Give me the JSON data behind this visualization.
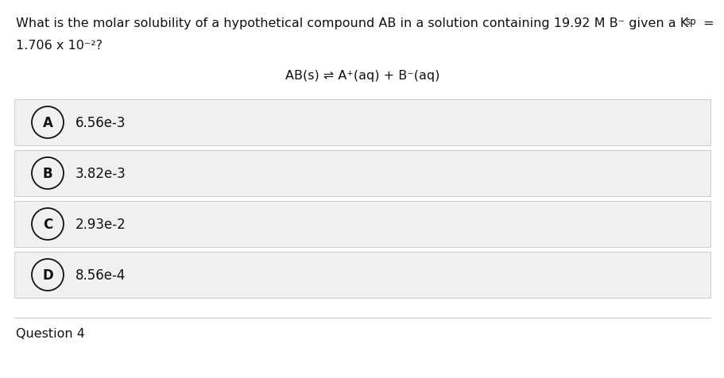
{
  "question_line1": "What is the molar solubility of a hypothetical compound AB in a solution containing 19.92 M B⁻ given a K",
  "ksp_sub": "sp",
  "question_line2": "1.706 x 10⁻²?",
  "equation": "AB(s) ⇌ A⁺(aq) + B⁻(aq)",
  "choices": [
    {
      "label": "A",
      "text": "6.56e-3"
    },
    {
      "label": "B",
      "text": "3.82e-3"
    },
    {
      "label": "C",
      "text": "2.93e-2"
    },
    {
      "label": "D",
      "text": "8.56e-4"
    }
  ],
  "bg_color": "#ffffff",
  "choice_bg_color": "#f0f0f0",
  "text_color": "#111111",
  "border_color": "#c8c8c8",
  "question_fontsize": 11.5,
  "equation_fontsize": 11.5,
  "choice_fontsize": 12.0,
  "footer_text": "Question 4"
}
